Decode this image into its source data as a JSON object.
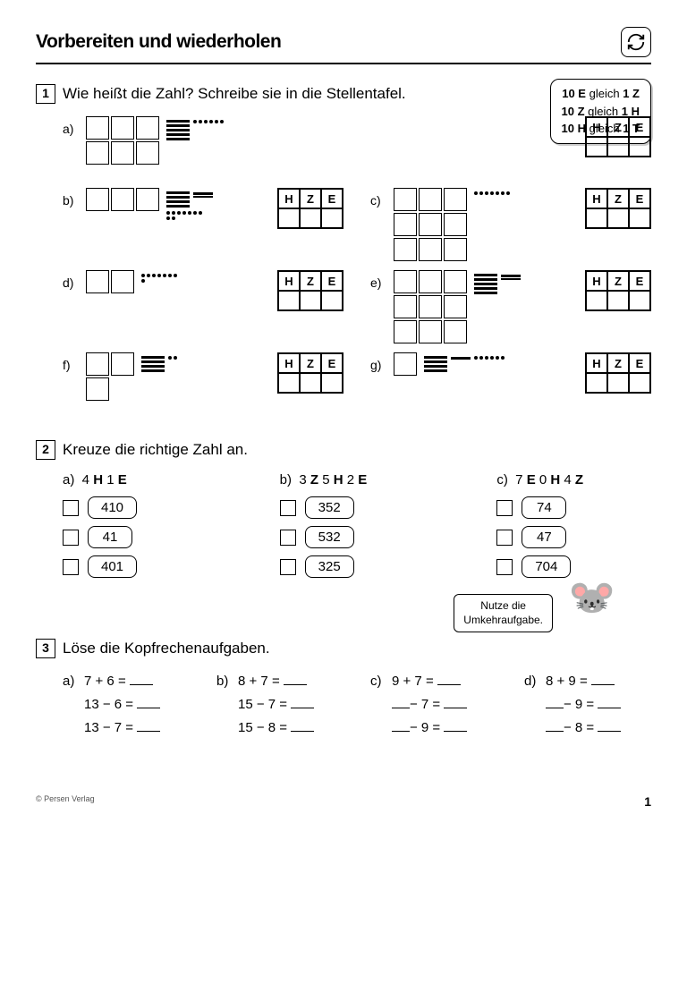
{
  "header": {
    "title": "Vorbereiten und wiederholen"
  },
  "rules": {
    "line1_a": "10 E",
    "line1_b": "gleich",
    "line1_c": "1 Z",
    "line2_a": "10 Z",
    "line2_b": "gleich",
    "line2_c": "1 H",
    "line3_a": "10 H",
    "line3_b": "gleich",
    "line3_c": "1 T"
  },
  "task1": {
    "num": "1",
    "title": "Wie heißt die Zahl? Schreibe sie in die Stellentafel.",
    "hze": [
      "H",
      "Z",
      "E"
    ],
    "items": {
      "a": {
        "label": "a)",
        "rows": [
          3,
          3
        ],
        "bars": 5,
        "hbars": 0,
        "dots": 6
      },
      "b": {
        "label": "b)",
        "rows": [
          3
        ],
        "bars": 4,
        "hbars": 2,
        "dots": 9
      },
      "c": {
        "label": "c)",
        "rows": [
          3,
          3,
          3
        ],
        "bars": 0,
        "hbars": 0,
        "dots": 7
      },
      "d": {
        "label": "d)",
        "rows": [
          2
        ],
        "bars": 0,
        "hbars": 0,
        "dots": 8
      },
      "e": {
        "label": "e)",
        "rows": [
          3,
          3,
          3
        ],
        "bars": 5,
        "hbars": 2,
        "dots": 0
      },
      "f": {
        "label": "f)",
        "rows": [
          2,
          1
        ],
        "bars": 4,
        "hbars": 0,
        "dots": 2
      },
      "g": {
        "label": "g)",
        "rows": [
          1
        ],
        "bars": 4,
        "hbars": 1,
        "dots": 6
      }
    }
  },
  "task2": {
    "num": "2",
    "title": "Kreuze die richtige Zahl an.",
    "cols": [
      {
        "label": "a)",
        "q": [
          "4 ",
          "H",
          " 1 ",
          "E"
        ],
        "opts": [
          "410",
          "41",
          "401"
        ]
      },
      {
        "label": "b)",
        "q": [
          "3 ",
          "Z",
          " 5 ",
          "H",
          " 2 ",
          "E"
        ],
        "opts": [
          "352",
          "532",
          "325"
        ]
      },
      {
        "label": "c)",
        "q": [
          "7 ",
          "E",
          " 0 ",
          "H",
          " 4 ",
          "Z"
        ],
        "opts": [
          "74",
          "47",
          "704"
        ]
      }
    ]
  },
  "hint": {
    "line1": "Nutze die",
    "line2": "Umkehraufgabe."
  },
  "task3": {
    "num": "3",
    "title": "Löse die Kopfrechenaufgaben.",
    "cols": [
      {
        "label": "a)",
        "lines": [
          "7 + 6 =",
          "13 − 6 =",
          "13 − 7 ="
        ]
      },
      {
        "label": "b)",
        "lines": [
          "8 + 7 =",
          "15 − 7 =",
          "15 − 8 ="
        ]
      },
      {
        "label": "c)",
        "lines": [
          "9  + 7 =",
          "  − 7 =",
          "  − 9 ="
        ]
      },
      {
        "label": "d)",
        "lines": [
          "8  + 9 =",
          "  − 9 =",
          "  − 8 ="
        ]
      }
    ]
  },
  "footer": {
    "publisher": "© Persen Verlag",
    "page": "1"
  }
}
